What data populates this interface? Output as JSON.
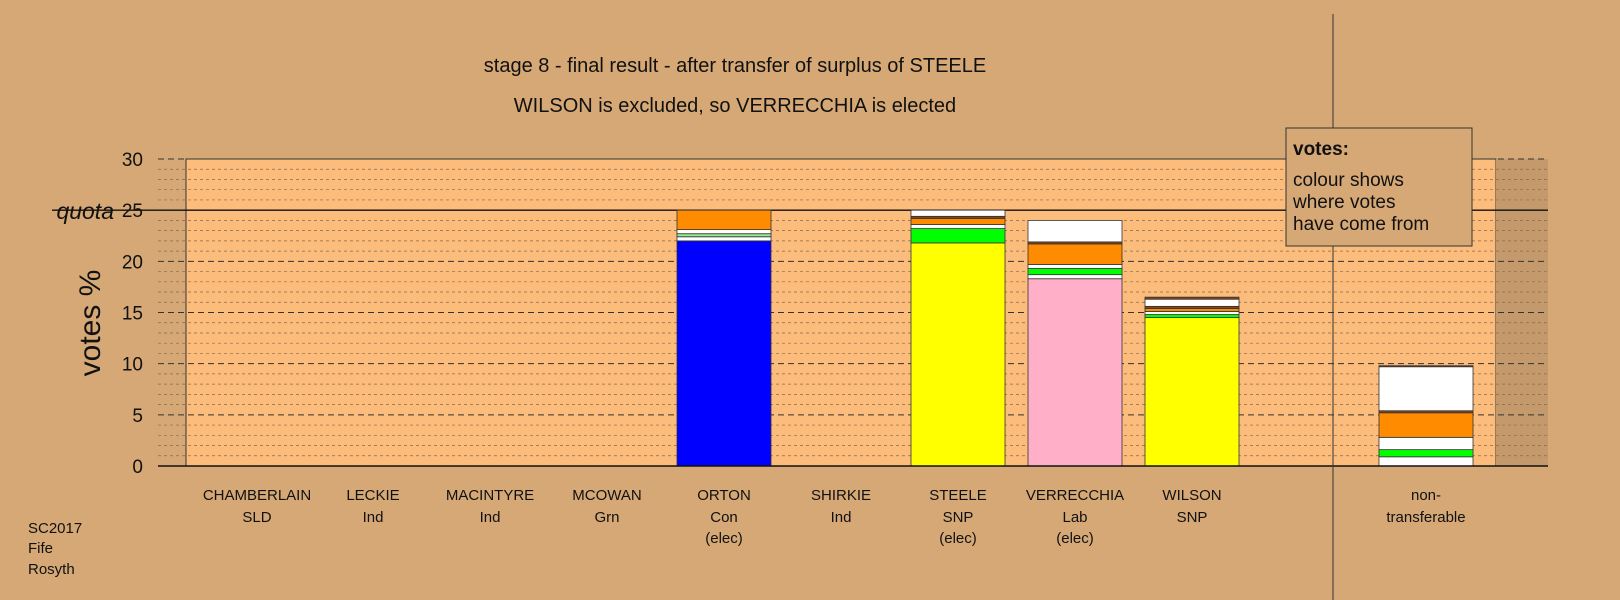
{
  "chart_data": {
    "type": "bar",
    "stacked": true,
    "title": "stage 8 - final result - after transfer of surplus of STEELE",
    "subtitle": "WILSON is excluded, so VERRECCHIA is elected",
    "ylabel": "votes %",
    "ylim": [
      0,
      30
    ],
    "yticks": [
      "0",
      "5",
      "10",
      "15",
      "20",
      "25",
      "30"
    ],
    "quota": {
      "label": "quota",
      "value": 25
    },
    "grid": true,
    "candidates": [
      {
        "name": "CHAMBERLAIN",
        "party": "SLD",
        "status": "",
        "segments": []
      },
      {
        "name": "LECKIE",
        "party": "Ind",
        "status": "",
        "segments": []
      },
      {
        "name": "MACINTYRE",
        "party": "Ind",
        "status": "",
        "segments": []
      },
      {
        "name": "MCOWAN",
        "party": "Grn",
        "status": "",
        "segments": []
      },
      {
        "name": "ORTON",
        "party": "Con",
        "status": "(elec)",
        "segments": [
          {
            "value": 22.0,
            "color": "#0000ff"
          },
          {
            "value": 0.4,
            "color": "#ffffff"
          },
          {
            "value": 0.3,
            "color": "#90ee90"
          },
          {
            "value": 0.4,
            "color": "#ffffff"
          },
          {
            "value": 1.9,
            "color": "#ff8c00"
          }
        ]
      },
      {
        "name": "SHIRKIE",
        "party": "Ind",
        "status": "",
        "segments": []
      },
      {
        "name": "STEELE",
        "party": "SNP",
        "status": "(elec)",
        "segments": [
          {
            "value": 21.8,
            "color": "#ffff00"
          },
          {
            "value": 1.4,
            "color": "#00ff00"
          },
          {
            "value": 0.4,
            "color": "#ffffff"
          },
          {
            "value": 0.6,
            "color": "#ff8c00"
          },
          {
            "value": 0.2,
            "color": "#8b4513"
          },
          {
            "value": 0.6,
            "color": "#ffffff"
          }
        ]
      },
      {
        "name": "VERRECCHIA",
        "party": "Lab",
        "status": "(elec)",
        "segments": [
          {
            "value": 18.3,
            "color": "#ffb0c8"
          },
          {
            "value": 0.4,
            "color": "#ffffff"
          },
          {
            "value": 0.6,
            "color": "#00ff00"
          },
          {
            "value": 0.4,
            "color": "#ffffff"
          },
          {
            "value": 2.0,
            "color": "#ff8c00"
          },
          {
            "value": 0.2,
            "color": "#8b4513"
          },
          {
            "value": 2.1,
            "color": "#ffffff"
          }
        ]
      },
      {
        "name": "WILSON",
        "party": "SNP",
        "status": "",
        "segments": [
          {
            "value": 14.5,
            "color": "#ffff00"
          },
          {
            "value": 0.3,
            "color": "#00ff00"
          },
          {
            "value": 0.3,
            "color": "#ffffff"
          },
          {
            "value": 0.3,
            "color": "#ff8c00"
          },
          {
            "value": 0.2,
            "color": "#8b4513"
          },
          {
            "value": 0.7,
            "color": "#ffffff"
          },
          {
            "value": 0.2,
            "color": "#8b4513"
          }
        ]
      }
    ],
    "nontransferable": {
      "name": "non-",
      "party": "transferable",
      "segments": [
        {
          "value": 0.9,
          "color": "#ffffff"
        },
        {
          "value": 0.7,
          "color": "#00ff00"
        },
        {
          "value": 1.2,
          "color": "#ffffff"
        },
        {
          "value": 2.4,
          "color": "#ff8c00"
        },
        {
          "value": 0.2,
          "color": "#8b4513"
        },
        {
          "value": 4.3,
          "color": "#ffffff"
        },
        {
          "value": 0.1,
          "color": "#8b4513"
        }
      ]
    },
    "legend": {
      "title": "votes:",
      "lines": [
        "colour shows",
        "where votes",
        "have come from"
      ]
    }
  },
  "info": {
    "lines": [
      "SC2017",
      "Fife",
      "Rosyth"
    ]
  },
  "colors": {
    "background": "#d5a876",
    "plot_area": "#fbbc7c",
    "plot_area_side": "#d5a876"
  }
}
